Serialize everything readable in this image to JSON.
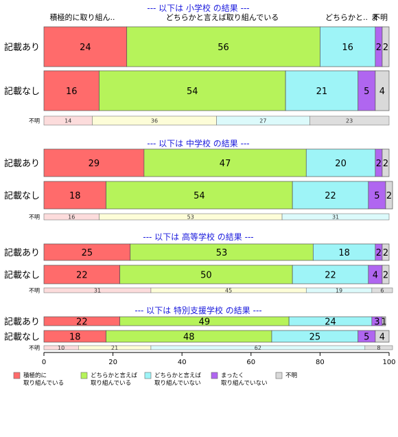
{
  "chart_data": {
    "type": "bar",
    "orientation": "horizontal",
    "stacked": true,
    "xlim": [
      0,
      100
    ],
    "x_ticks": [
      "0",
      "20",
      "40",
      "60",
      "80",
      "100"
    ],
    "category_headers": [
      "積極的に取り組ん..",
      "どちらかと言えば取り組んでいる",
      "どちらかと..",
      "ま",
      "不明"
    ],
    "legend": [
      {
        "line1": "積極的に",
        "line2": "取り組んでいる",
        "color": "#ff6b6b"
      },
      {
        "line1": "どちらかと言えば",
        "line2": "取り組んでいる",
        "color": "#b6f35a"
      },
      {
        "line1": "どちらかと言えば",
        "line2": "取り組んでいない",
        "color": "#9ef4f7"
      },
      {
        "line1": "まったく",
        "line2": "取り組んでいない",
        "color": "#b066f0"
      },
      {
        "line1": "不明",
        "line2": "",
        "color": "#d9d9d9"
      }
    ],
    "unknown_colors": [
      "#fcdcdc",
      "#fdfdd8",
      "#dcfafb",
      "#dedede"
    ],
    "sections": [
      {
        "title": "--- 以下は 小学校 の結果 ---",
        "rows": [
          {
            "label": "記載あり",
            "values": [
              24,
              56,
              16,
              2,
              2
            ]
          },
          {
            "label": "記載なし",
            "values": [
              16,
              54,
              21,
              5,
              4
            ]
          }
        ],
        "unknown": {
          "label": "不明",
          "values": [
            14,
            36,
            27,
            23
          ]
        }
      },
      {
        "title": "--- 以下は 中学校 の結果 ---",
        "rows": [
          {
            "label": "記載あり",
            "values": [
              29,
              47,
              20,
              2,
              2
            ]
          },
          {
            "label": "記載なし",
            "values": [
              18,
              54,
              22,
              5,
              2
            ]
          }
        ],
        "unknown": {
          "label": "不明",
          "values": [
            16,
            53,
            31,
            0
          ]
        }
      },
      {
        "title": "--- 以下は 高等学校 の結果 ---",
        "rows": [
          {
            "label": "記載あり",
            "values": [
              25,
              53,
              18,
              2,
              2
            ]
          },
          {
            "label": "記載なし",
            "values": [
              22,
              50,
              22,
              4,
              2
            ]
          }
        ],
        "unknown": {
          "label": "不明",
          "values": [
            31,
            45,
            19,
            6
          ]
        }
      },
      {
        "title": "--- 以下は 特別支援学校 の結果 ---",
        "rows": [
          {
            "label": "記載あり",
            "values": [
              22,
              49,
              24,
              3,
              1
            ]
          },
          {
            "label": "記載なし",
            "values": [
              18,
              48,
              25,
              5,
              4
            ]
          }
        ],
        "unknown": {
          "label": "不明",
          "values": [
            10,
            21,
            62,
            8
          ]
        }
      }
    ]
  }
}
